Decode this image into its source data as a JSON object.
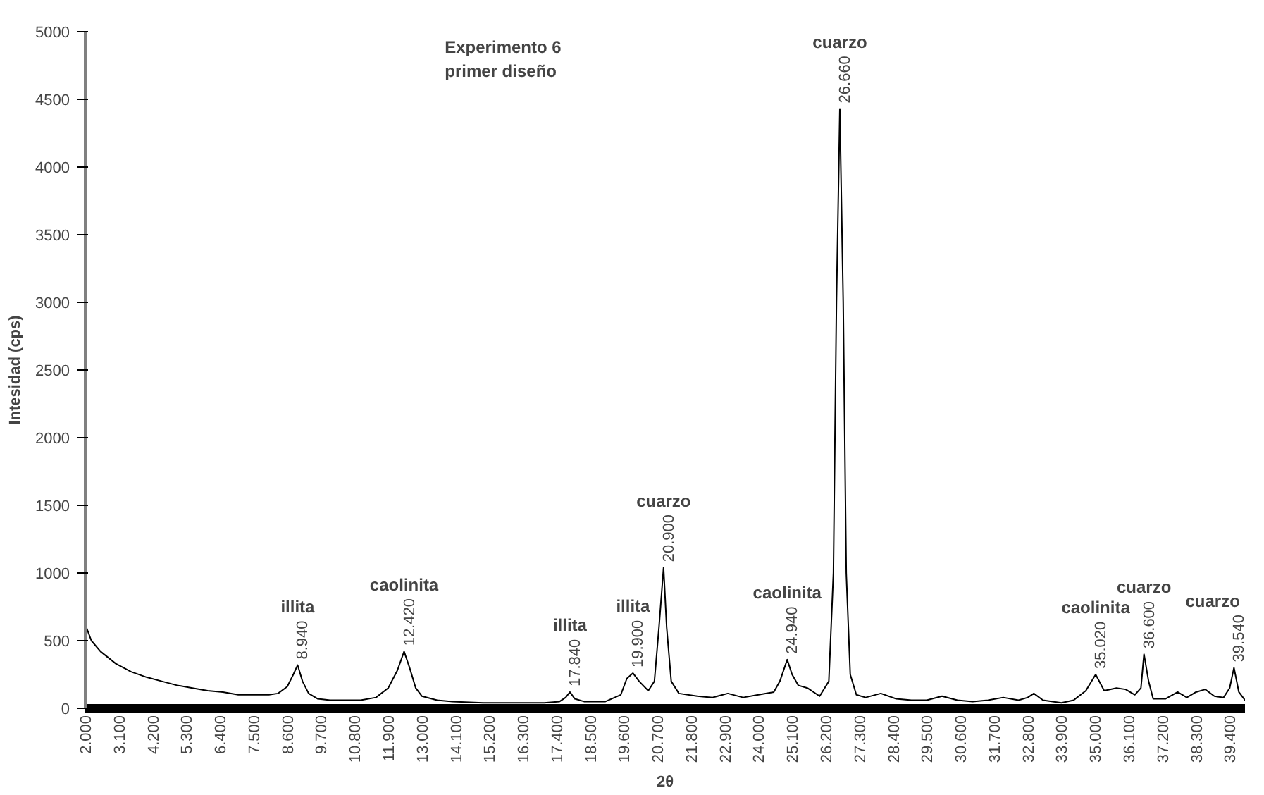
{
  "chart_data": {
    "type": "line",
    "title": "Experimento 6\nprimer diseño",
    "xlabel": "2θ",
    "ylabel": "Intesidad (cps)",
    "xlim": [
      2000,
      39900
    ],
    "ylim": [
      0,
      5000
    ],
    "xticks": [
      {
        "value": 2000,
        "label": "2.000"
      },
      {
        "value": 3100,
        "label": "3.100"
      },
      {
        "value": 4200,
        "label": "4.200"
      },
      {
        "value": 5300,
        "label": "5.300"
      },
      {
        "value": 6400,
        "label": "6.400"
      },
      {
        "value": 7500,
        "label": "7.500"
      },
      {
        "value": 8600,
        "label": "8.600"
      },
      {
        "value": 9700,
        "label": "9.700"
      },
      {
        "value": 10800,
        "label": "10.800"
      },
      {
        "value": 11900,
        "label": "11.900"
      },
      {
        "value": 13000,
        "label": "13.000"
      },
      {
        "value": 14100,
        "label": "14.100"
      },
      {
        "value": 15200,
        "label": "15.200"
      },
      {
        "value": 16300,
        "label": "16.300"
      },
      {
        "value": 17400,
        "label": "17.400"
      },
      {
        "value": 18500,
        "label": "18.500"
      },
      {
        "value": 19600,
        "label": "19.600"
      },
      {
        "value": 20700,
        "label": "20.700"
      },
      {
        "value": 21800,
        "label": "21.800"
      },
      {
        "value": 22900,
        "label": "22.900"
      },
      {
        "value": 24000,
        "label": "24.000"
      },
      {
        "value": 25100,
        "label": "25.100"
      },
      {
        "value": 26200,
        "label": "26.200"
      },
      {
        "value": 27300,
        "label": "27.300"
      },
      {
        "value": 28400,
        "label": "28.400"
      },
      {
        "value": 29500,
        "label": "29.500"
      },
      {
        "value": 30600,
        "label": "30.600"
      },
      {
        "value": 31700,
        "label": "31.700"
      },
      {
        "value": 32800,
        "label": "32.800"
      },
      {
        "value": 33900,
        "label": "33.900"
      },
      {
        "value": 35000,
        "label": "35.000"
      },
      {
        "value": 36100,
        "label": "36.100"
      },
      {
        "value": 37200,
        "label": "37.200"
      },
      {
        "value": 38300,
        "label": "38.300"
      },
      {
        "value": 39400,
        "label": "39.400"
      }
    ],
    "yticks": [
      0,
      500,
      1000,
      1500,
      2000,
      2500,
      3000,
      3500,
      4000,
      4500,
      5000
    ],
    "grid": false,
    "marker": "none",
    "line_style": "solid",
    "series": [
      {
        "color": "#000000",
        "x": [
          2000,
          2200,
          2500,
          3000,
          3500,
          4000,
          4500,
          5000,
          5500,
          6000,
          6500,
          7000,
          7500,
          8000,
          8300,
          8600,
          8800,
          8940,
          9100,
          9300,
          9600,
          10000,
          10500,
          11000,
          11500,
          11900,
          12200,
          12420,
          12600,
          12800,
          13000,
          13500,
          14000,
          15000,
          16000,
          17000,
          17500,
          17700,
          17840,
          18000,
          18300,
          19000,
          19500,
          19700,
          19900,
          20100,
          20400,
          20600,
          20750,
          20900,
          21000,
          21150,
          21400,
          22000,
          22500,
          23000,
          23500,
          24000,
          24500,
          24700,
          24940,
          25100,
          25300,
          25600,
          26000,
          26300,
          26450,
          26550,
          26660,
          26770,
          26870,
          27000,
          27200,
          27500,
          28000,
          28500,
          29000,
          29500,
          30000,
          30500,
          31000,
          31500,
          32000,
          32500,
          32800,
          33000,
          33300,
          33900,
          34300,
          34700,
          35020,
          35300,
          35700,
          36000,
          36300,
          36500,
          36600,
          36750,
          36900,
          37300,
          37700,
          38000,
          38300,
          38600,
          38900,
          39200,
          39400,
          39540,
          39700,
          39900
        ],
        "values": [
          620,
          500,
          420,
          330,
          270,
          230,
          200,
          170,
          150,
          130,
          120,
          100,
          100,
          100,
          110,
          160,
          250,
          320,
          200,
          110,
          70,
          60,
          60,
          60,
          80,
          150,
          280,
          420,
          300,
          150,
          90,
          60,
          50,
          40,
          40,
          40,
          50,
          80,
          120,
          70,
          50,
          50,
          100,
          220,
          260,
          200,
          130,
          200,
          600,
          1040,
          600,
          200,
          110,
          90,
          80,
          110,
          80,
          100,
          120,
          200,
          360,
          250,
          170,
          150,
          90,
          200,
          1000,
          3000,
          4430,
          3000,
          1000,
          250,
          100,
          80,
          110,
          70,
          60,
          60,
          90,
          60,
          50,
          60,
          80,
          60,
          80,
          110,
          60,
          40,
          60,
          130,
          250,
          130,
          150,
          140,
          100,
          150,
          400,
          200,
          70,
          70,
          120,
          80,
          120,
          140,
          90,
          80,
          150,
          300,
          120,
          60
        ]
      }
    ],
    "annotations": [
      {
        "text": "8.940",
        "x": 8940,
        "y": 320
      },
      "illita",
      {
        "text": "12.420",
        "x": 12420,
        "y": 420
      },
      "caolinita",
      {
        "text": "17.840",
        "x": 17840,
        "y": 120
      },
      "illita",
      {
        "text": "19.900",
        "x": 19900,
        "y": 260
      },
      "illita",
      {
        "text": "20.900",
        "x": 20900,
        "y": 1040
      },
      "cuarzo",
      {
        "text": "24.940",
        "x": 24940,
        "y": 360
      },
      "caolinita",
      {
        "text": "26.660",
        "x": 26660,
        "y": 4430
      },
      "cuarzo",
      {
        "text": "35.020",
        "x": 35020,
        "y": 250
      },
      "caolinita",
      {
        "text": "36.600",
        "x": 36600,
        "y": 400
      },
      "cuarzo",
      {
        "text": "39.540",
        "x": 39540,
        "y": 300
      },
      "cuarzo"
    ]
  }
}
